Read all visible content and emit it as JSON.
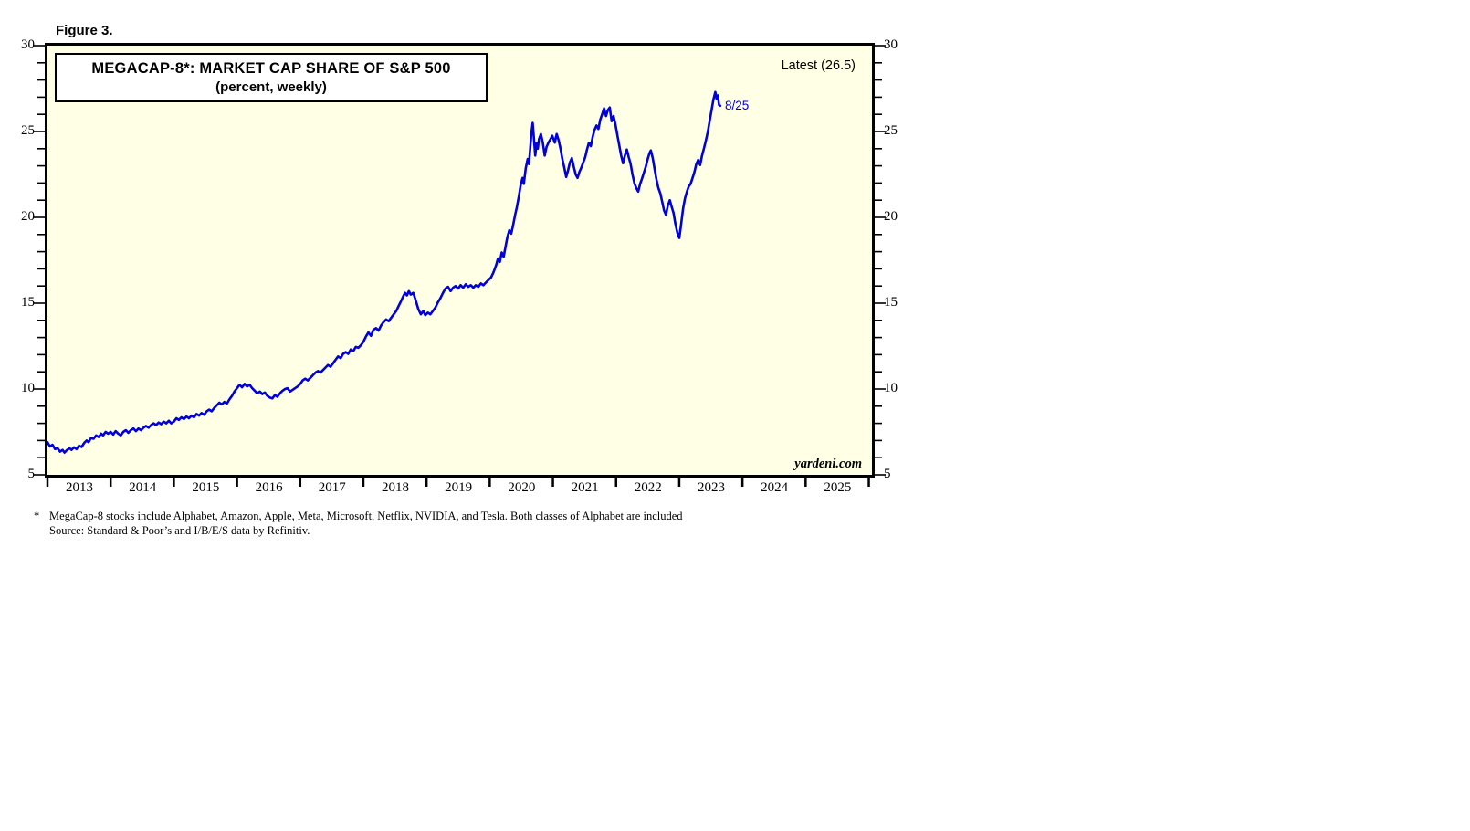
{
  "figure_label": "Figure 3.",
  "chart": {
    "title_line1": "MEGACAP-8*: MARKET CAP SHARE OF S&P 500",
    "title_line2": "(percent, weekly)",
    "latest_label": "Latest (26.5)",
    "point_label": "8/25",
    "watermark": "yardeni.com",
    "colors": {
      "line": "#0000D8",
      "plot_background": "#FFFFE5",
      "border": "#000000"
    }
  },
  "footnote": {
    "marker": "*",
    "line1": "MegaCap-8 stocks include Alphabet, Amazon, Apple, Meta, Microsoft, Netflix, NVIDIA, and Tesla. Both classes of Alphabet are included",
    "line2": "Source: Standard & Poor’s and I/B/E/S data by Refinitiv."
  },
  "chart_data": {
    "type": "line",
    "title": "MEGACAP-8*: MARKET CAP SHARE OF S&P 500",
    "subtitle": "(percent, weekly)",
    "series_name": "MegaCap-8 share of S&P 500 market cap (%)",
    "grid": false,
    "legend": false,
    "latest": {
      "date_label": "8/25",
      "value": 26.5
    },
    "x_axis": {
      "range": [
        2013.0,
        2026.05
      ],
      "tick_years": [
        2013,
        2014,
        2015,
        2016,
        2017,
        2018,
        2019,
        2020,
        2021,
        2022,
        2023,
        2024,
        2025,
        2026
      ],
      "labels": [
        "2013",
        "2014",
        "2015",
        "2016",
        "2017",
        "2018",
        "2019",
        "2020",
        "2021",
        "2022",
        "2023",
        "2024",
        "2025"
      ]
    },
    "y_axis": {
      "range": [
        5,
        30
      ],
      "major_ticks": [
        5,
        10,
        15,
        20,
        25,
        30
      ],
      "minor_tick_step": 1,
      "sides": "both"
    },
    "points": [
      [
        2013.0,
        6.9
      ],
      [
        2013.04,
        6.65
      ],
      [
        2013.08,
        6.75
      ],
      [
        2013.12,
        6.5
      ],
      [
        2013.16,
        6.55
      ],
      [
        2013.2,
        6.35
      ],
      [
        2013.24,
        6.45
      ],
      [
        2013.27,
        6.3
      ],
      [
        2013.31,
        6.45
      ],
      [
        2013.35,
        6.55
      ],
      [
        2013.38,
        6.45
      ],
      [
        2013.42,
        6.6
      ],
      [
        2013.46,
        6.5
      ],
      [
        2013.5,
        6.7
      ],
      [
        2013.54,
        6.62
      ],
      [
        2013.58,
        6.85
      ],
      [
        2013.62,
        7.0
      ],
      [
        2013.65,
        6.9
      ],
      [
        2013.69,
        7.15
      ],
      [
        2013.73,
        7.1
      ],
      [
        2013.77,
        7.3
      ],
      [
        2013.81,
        7.2
      ],
      [
        2013.85,
        7.4
      ],
      [
        2013.88,
        7.3
      ],
      [
        2013.92,
        7.5
      ],
      [
        2013.96,
        7.4
      ],
      [
        2014.0,
        7.5
      ],
      [
        2014.04,
        7.35
      ],
      [
        2014.08,
        7.55
      ],
      [
        2014.12,
        7.4
      ],
      [
        2014.16,
        7.3
      ],
      [
        2014.2,
        7.5
      ],
      [
        2014.24,
        7.6
      ],
      [
        2014.28,
        7.45
      ],
      [
        2014.32,
        7.6
      ],
      [
        2014.36,
        7.7
      ],
      [
        2014.4,
        7.55
      ],
      [
        2014.44,
        7.7
      ],
      [
        2014.48,
        7.6
      ],
      [
        2014.52,
        7.75
      ],
      [
        2014.56,
        7.85
      ],
      [
        2014.6,
        7.75
      ],
      [
        2014.64,
        7.9
      ],
      [
        2014.68,
        8.0
      ],
      [
        2014.72,
        7.9
      ],
      [
        2014.76,
        8.05
      ],
      [
        2014.8,
        7.95
      ],
      [
        2014.84,
        8.1
      ],
      [
        2014.88,
        8.0
      ],
      [
        2014.92,
        8.15
      ],
      [
        2014.96,
        8.0
      ],
      [
        2015.0,
        8.1
      ],
      [
        2015.04,
        8.3
      ],
      [
        2015.08,
        8.2
      ],
      [
        2015.12,
        8.35
      ],
      [
        2015.16,
        8.25
      ],
      [
        2015.2,
        8.4
      ],
      [
        2015.24,
        8.3
      ],
      [
        2015.28,
        8.45
      ],
      [
        2015.32,
        8.35
      ],
      [
        2015.36,
        8.55
      ],
      [
        2015.4,
        8.45
      ],
      [
        2015.44,
        8.6
      ],
      [
        2015.48,
        8.5
      ],
      [
        2015.52,
        8.7
      ],
      [
        2015.56,
        8.8
      ],
      [
        2015.6,
        8.7
      ],
      [
        2015.64,
        8.9
      ],
      [
        2015.68,
        9.05
      ],
      [
        2015.72,
        9.2
      ],
      [
        2015.76,
        9.1
      ],
      [
        2015.8,
        9.25
      ],
      [
        2015.84,
        9.15
      ],
      [
        2015.88,
        9.4
      ],
      [
        2015.92,
        9.6
      ],
      [
        2015.96,
        9.85
      ],
      [
        2016.0,
        10.05
      ],
      [
        2016.04,
        10.25
      ],
      [
        2016.08,
        10.1
      ],
      [
        2016.12,
        10.3
      ],
      [
        2016.16,
        10.15
      ],
      [
        2016.2,
        10.25
      ],
      [
        2016.24,
        10.05
      ],
      [
        2016.28,
        9.9
      ],
      [
        2016.32,
        9.75
      ],
      [
        2016.36,
        9.85
      ],
      [
        2016.4,
        9.7
      ],
      [
        2016.44,
        9.8
      ],
      [
        2016.48,
        9.6
      ],
      [
        2016.52,
        9.5
      ],
      [
        2016.56,
        9.45
      ],
      [
        2016.6,
        9.65
      ],
      [
        2016.64,
        9.55
      ],
      [
        2016.68,
        9.75
      ],
      [
        2016.72,
        9.9
      ],
      [
        2016.76,
        10.0
      ],
      [
        2016.8,
        10.05
      ],
      [
        2016.84,
        9.85
      ],
      [
        2016.88,
        9.95
      ],
      [
        2016.92,
        10.05
      ],
      [
        2016.96,
        10.15
      ],
      [
        2017.0,
        10.3
      ],
      [
        2017.04,
        10.5
      ],
      [
        2017.08,
        10.6
      ],
      [
        2017.12,
        10.5
      ],
      [
        2017.16,
        10.65
      ],
      [
        2017.2,
        10.8
      ],
      [
        2017.24,
        10.95
      ],
      [
        2017.28,
        11.05
      ],
      [
        2017.32,
        10.95
      ],
      [
        2017.36,
        11.1
      ],
      [
        2017.4,
        11.25
      ],
      [
        2017.44,
        11.4
      ],
      [
        2017.48,
        11.3
      ],
      [
        2017.52,
        11.5
      ],
      [
        2017.56,
        11.7
      ],
      [
        2017.6,
        11.9
      ],
      [
        2017.64,
        11.8
      ],
      [
        2017.68,
        12.05
      ],
      [
        2017.72,
        12.15
      ],
      [
        2017.76,
        12.05
      ],
      [
        2017.8,
        12.3
      ],
      [
        2017.84,
        12.2
      ],
      [
        2017.88,
        12.45
      ],
      [
        2017.92,
        12.4
      ],
      [
        2017.96,
        12.55
      ],
      [
        2018.0,
        12.75
      ],
      [
        2018.04,
        13.05
      ],
      [
        2018.08,
        13.3
      ],
      [
        2018.12,
        13.1
      ],
      [
        2018.16,
        13.45
      ],
      [
        2018.2,
        13.55
      ],
      [
        2018.24,
        13.4
      ],
      [
        2018.28,
        13.7
      ],
      [
        2018.32,
        13.9
      ],
      [
        2018.36,
        14.05
      ],
      [
        2018.4,
        13.95
      ],
      [
        2018.44,
        14.15
      ],
      [
        2018.48,
        14.35
      ],
      [
        2018.52,
        14.55
      ],
      [
        2018.56,
        14.85
      ],
      [
        2018.6,
        15.15
      ],
      [
        2018.63,
        15.4
      ],
      [
        2018.66,
        15.6
      ],
      [
        2018.69,
        15.45
      ],
      [
        2018.72,
        15.7
      ],
      [
        2018.75,
        15.5
      ],
      [
        2018.79,
        15.6
      ],
      [
        2018.83,
        15.15
      ],
      [
        2018.87,
        14.65
      ],
      [
        2018.91,
        14.35
      ],
      [
        2018.95,
        14.55
      ],
      [
        2018.98,
        14.3
      ],
      [
        2019.02,
        14.45
      ],
      [
        2019.06,
        14.35
      ],
      [
        2019.1,
        14.55
      ],
      [
        2019.14,
        14.75
      ],
      [
        2019.18,
        15.05
      ],
      [
        2019.22,
        15.3
      ],
      [
        2019.26,
        15.6
      ],
      [
        2019.3,
        15.85
      ],
      [
        2019.34,
        15.95
      ],
      [
        2019.38,
        15.7
      ],
      [
        2019.42,
        15.9
      ],
      [
        2019.46,
        16.0
      ],
      [
        2019.5,
        15.85
      ],
      [
        2019.54,
        16.05
      ],
      [
        2019.58,
        15.9
      ],
      [
        2019.62,
        16.1
      ],
      [
        2019.66,
        15.95
      ],
      [
        2019.7,
        16.05
      ],
      [
        2019.74,
        15.9
      ],
      [
        2019.78,
        16.05
      ],
      [
        2019.82,
        15.95
      ],
      [
        2019.86,
        16.15
      ],
      [
        2019.9,
        16.05
      ],
      [
        2019.94,
        16.2
      ],
      [
        2019.98,
        16.35
      ],
      [
        2020.02,
        16.5
      ],
      [
        2020.06,
        16.8
      ],
      [
        2020.1,
        17.2
      ],
      [
        2020.13,
        17.6
      ],
      [
        2020.16,
        17.4
      ],
      [
        2020.19,
        17.95
      ],
      [
        2020.22,
        17.7
      ],
      [
        2020.25,
        18.3
      ],
      [
        2020.28,
        18.85
      ],
      [
        2020.31,
        19.25
      ],
      [
        2020.34,
        19.05
      ],
      [
        2020.37,
        19.55
      ],
      [
        2020.4,
        20.1
      ],
      [
        2020.43,
        20.6
      ],
      [
        2020.46,
        21.2
      ],
      [
        2020.49,
        21.9
      ],
      [
        2020.52,
        22.3
      ],
      [
        2020.54,
        21.95
      ],
      [
        2020.57,
        22.85
      ],
      [
        2020.6,
        23.4
      ],
      [
        2020.62,
        23.1
      ],
      [
        2020.64,
        24.0
      ],
      [
        2020.66,
        24.9
      ],
      [
        2020.68,
        25.5
      ],
      [
        2020.7,
        24.6
      ],
      [
        2020.72,
        23.6
      ],
      [
        2020.74,
        24.3
      ],
      [
        2020.76,
        24.0
      ],
      [
        2020.78,
        24.55
      ],
      [
        2020.81,
        24.85
      ],
      [
        2020.84,
        24.35
      ],
      [
        2020.87,
        23.6
      ],
      [
        2020.9,
        24.1
      ],
      [
        2020.93,
        24.35
      ],
      [
        2020.96,
        24.55
      ],
      [
        2020.99,
        24.75
      ],
      [
        2021.03,
        24.35
      ],
      [
        2021.06,
        24.85
      ],
      [
        2021.09,
        24.5
      ],
      [
        2021.12,
        24.0
      ],
      [
        2021.15,
        23.4
      ],
      [
        2021.18,
        22.9
      ],
      [
        2021.21,
        22.35
      ],
      [
        2021.24,
        22.75
      ],
      [
        2021.27,
        23.2
      ],
      [
        2021.3,
        23.45
      ],
      [
        2021.33,
        22.95
      ],
      [
        2021.36,
        22.5
      ],
      [
        2021.39,
        22.3
      ],
      [
        2021.42,
        22.65
      ],
      [
        2021.45,
        22.9
      ],
      [
        2021.48,
        23.2
      ],
      [
        2021.51,
        23.5
      ],
      [
        2021.54,
        23.95
      ],
      [
        2021.57,
        24.35
      ],
      [
        2021.6,
        24.15
      ],
      [
        2021.63,
        24.7
      ],
      [
        2021.66,
        25.1
      ],
      [
        2021.69,
        25.35
      ],
      [
        2021.72,
        25.15
      ],
      [
        2021.75,
        25.7
      ],
      [
        2021.78,
        26.0
      ],
      [
        2021.81,
        26.35
      ],
      [
        2021.84,
        25.9
      ],
      [
        2021.87,
        26.25
      ],
      [
        2021.9,
        26.4
      ],
      [
        2021.93,
        25.6
      ],
      [
        2021.96,
        25.9
      ],
      [
        2021.99,
        25.4
      ],
      [
        2022.02,
        24.8
      ],
      [
        2022.05,
        24.2
      ],
      [
        2022.08,
        23.6
      ],
      [
        2022.11,
        23.15
      ],
      [
        2022.14,
        23.6
      ],
      [
        2022.17,
        23.95
      ],
      [
        2022.2,
        23.5
      ],
      [
        2022.23,
        23.1
      ],
      [
        2022.26,
        22.5
      ],
      [
        2022.29,
        22.0
      ],
      [
        2022.32,
        21.7
      ],
      [
        2022.35,
        21.5
      ],
      [
        2022.38,
        21.95
      ],
      [
        2022.41,
        22.25
      ],
      [
        2022.44,
        22.6
      ],
      [
        2022.47,
        22.95
      ],
      [
        2022.5,
        23.4
      ],
      [
        2022.53,
        23.75
      ],
      [
        2022.55,
        23.9
      ],
      [
        2022.58,
        23.45
      ],
      [
        2022.61,
        22.8
      ],
      [
        2022.64,
        22.2
      ],
      [
        2022.67,
        21.7
      ],
      [
        2022.7,
        21.4
      ],
      [
        2022.73,
        20.9
      ],
      [
        2022.76,
        20.4
      ],
      [
        2022.79,
        20.15
      ],
      [
        2022.82,
        20.7
      ],
      [
        2022.85,
        21.0
      ],
      [
        2022.88,
        20.6
      ],
      [
        2022.91,
        20.25
      ],
      [
        2022.94,
        19.6
      ],
      [
        2022.97,
        19.1
      ],
      [
        2023.0,
        18.8
      ],
      [
        2023.03,
        19.6
      ],
      [
        2023.06,
        20.5
      ],
      [
        2023.09,
        21.1
      ],
      [
        2023.12,
        21.5
      ],
      [
        2023.15,
        21.8
      ],
      [
        2023.18,
        21.95
      ],
      [
        2023.21,
        22.3
      ],
      [
        2023.24,
        22.65
      ],
      [
        2023.27,
        23.1
      ],
      [
        2023.3,
        23.35
      ],
      [
        2023.33,
        23.05
      ],
      [
        2023.36,
        23.6
      ],
      [
        2023.39,
        24.0
      ],
      [
        2023.42,
        24.45
      ],
      [
        2023.45,
        24.95
      ],
      [
        2023.48,
        25.6
      ],
      [
        2023.51,
        26.2
      ],
      [
        2023.54,
        26.85
      ],
      [
        2023.57,
        27.3
      ],
      [
        2023.59,
        26.9
      ],
      [
        2023.61,
        27.1
      ],
      [
        2023.63,
        26.55
      ],
      [
        2023.65,
        26.5
      ]
    ]
  }
}
